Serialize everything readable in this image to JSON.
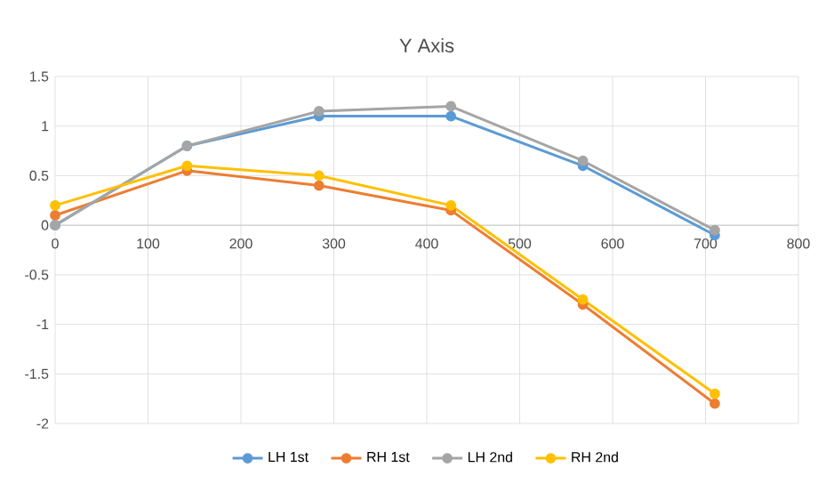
{
  "chart_data": {
    "type": "line",
    "title": "Y Axis",
    "x": [
      0,
      142,
      284,
      426,
      568,
      710
    ],
    "series": [
      {
        "name": "LH 1st",
        "color": "#5b9bd5",
        "values": [
          0,
          0.8,
          1.1,
          1.1,
          0.6,
          -0.1
        ]
      },
      {
        "name": "RH 1st",
        "color": "#ed7d31",
        "values": [
          0.1,
          0.55,
          0.4,
          0.15,
          -0.8,
          -1.8
        ]
      },
      {
        "name": "LH 2nd",
        "color": "#a5a5a5",
        "values": [
          0,
          0.8,
          1.15,
          1.2,
          0.65,
          -0.05
        ]
      },
      {
        "name": "RH 2nd",
        "color": "#ffc000",
        "values": [
          0.2,
          0.6,
          0.5,
          0.2,
          -0.75,
          -1.7
        ]
      }
    ],
    "xlim": [
      0,
      800
    ],
    "xticks": [
      0,
      100,
      200,
      300,
      400,
      500,
      600,
      700,
      800
    ],
    "ylim": [
      -2,
      1.5
    ],
    "yticks": [
      -2,
      -1.5,
      -1,
      -0.5,
      0,
      0.5,
      1,
      1.5
    ],
    "grid": true,
    "legend": "bottom",
    "marker": "circle",
    "line_style": "solid"
  }
}
